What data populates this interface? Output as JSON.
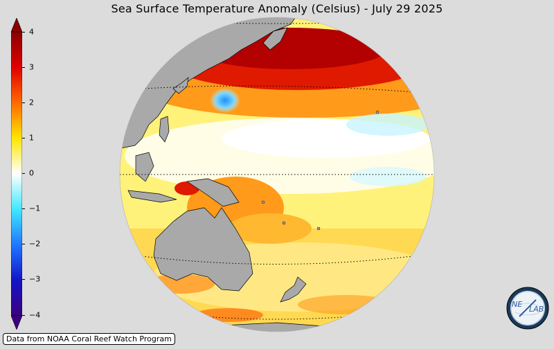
{
  "title": "Sea Surface Temperature Anomaly (Celsius) - July 29 2025",
  "colorbar": {
    "ticks": [
      "4",
      "3",
      "2",
      "1",
      "0",
      "−1",
      "−2",
      "−3",
      "−4"
    ],
    "min": -4,
    "max": 4,
    "extend": "both",
    "colors": [
      "#3a007a",
      "#1010e0",
      "#1e7bff",
      "#5ce0ff",
      "#ffffff",
      "#ffff40",
      "#ffa500",
      "#ff4000",
      "#8b0000"
    ]
  },
  "map": {
    "projection": "orthographic",
    "land_color": "#a9a9a9",
    "ocean_gridlines": "dotted",
    "features": [
      "warm-anomaly-north-pacific",
      "cold-anomaly-east-of-japan",
      "near-normal-equatorial-band",
      "warm-anomaly-coral-sea"
    ]
  },
  "credit": "Data from NOAA Coral Reef Watch Program",
  "logo": {
    "text_left": "NE",
    "text_right": "LAB"
  }
}
